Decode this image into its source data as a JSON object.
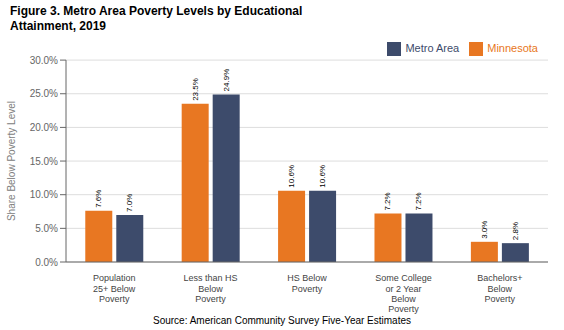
{
  "chart_data": {
    "type": "bar",
    "title": "Figure 3. Metro Area Poverty Levels by Educational\nAttainment, 2019",
    "categories": [
      "Population\n25+ Below\nPoverty",
      "Less than HS\nBelow\nPoverty",
      "HS Below\nPoverty",
      "Some College\nor 2 Year\nBelow\nPoverty",
      "Bachelors+\nBelow\nPoverty"
    ],
    "series": [
      {
        "name": "Minnesota",
        "color": "#E87722",
        "values": [
          7.6,
          23.5,
          10.6,
          7.2,
          3.0
        ],
        "value_labels": [
          "7.6%",
          "23.5%",
          "10.6%",
          "7.2%",
          "3.0%"
        ]
      },
      {
        "name": "Metro Area",
        "color": "#3D4B6B",
        "values": [
          7.0,
          24.9,
          10.6,
          7.2,
          2.8
        ],
        "value_labels": [
          "7.0%",
          "24.9%",
          "10.6%",
          "7.2%",
          "2.8%"
        ]
      }
    ],
    "y_label": "Share Below Poverty Level",
    "ylim": [
      0,
      30
    ],
    "yticks": [
      {
        "value": 0,
        "label": "0.0%"
      },
      {
        "value": 5,
        "label": "5.0%"
      },
      {
        "value": 10,
        "label": "10.0%"
      },
      {
        "value": 15,
        "label": "15.0%"
      },
      {
        "value": 20,
        "label": "20.0%"
      },
      {
        "value": 25,
        "label": "25.0%"
      },
      {
        "value": 30,
        "label": "30.0%"
      }
    ],
    "grid": true,
    "legend": "upper right",
    "data_labels": true,
    "annotations": [
      "Source: American Community Survey Five-Year Estimates"
    ]
  }
}
